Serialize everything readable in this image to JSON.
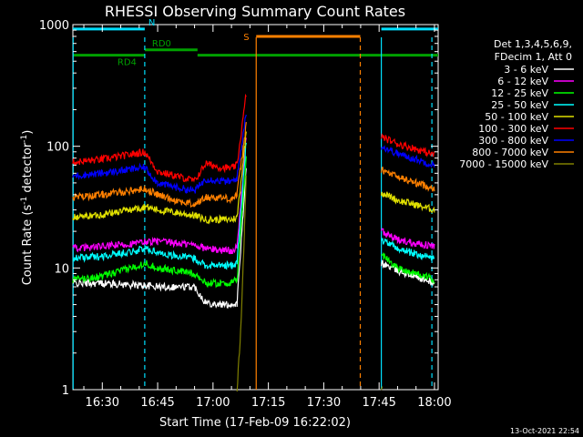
{
  "chart_data": {
    "type": "line",
    "title": "RHESSI Observing Summary Count Rates",
    "xlabel": "Start Time (17-Feb-09 16:22:02)",
    "ylabel_main": "Count Rate (s",
    "ylabel_sup": "-1",
    "ylabel_mid": " detector",
    "ylabel_end": ")",
    "y_scale": "log",
    "ylim": [
      1,
      1000
    ],
    "xlim_minutes": [
      22.03,
      121.0
    ],
    "x_ticks": [
      {
        "label": "16:30",
        "minute": 30
      },
      {
        "label": "16:45",
        "minute": 45
      },
      {
        "label": "17:00",
        "minute": 60
      },
      {
        "label": "17:15",
        "minute": 75
      },
      {
        "label": "17:30",
        "minute": 90
      },
      {
        "label": "17:45",
        "minute": 105
      },
      {
        "label": "18:00",
        "minute": 120
      }
    ],
    "y_ticks": [
      {
        "label": "1",
        "value": 1
      },
      {
        "label": "10",
        "value": 10
      },
      {
        "label": "100",
        "value": 100
      },
      {
        "label": "1000",
        "value": 1000
      }
    ],
    "legend_header": [
      "Det 1,3,4,5,6,9,",
      "FDecim 1, Att 0"
    ],
    "legend_placement": "right",
    "timestamp": "13-Oct-2021 22:54",
    "intervals": [
      {
        "label": "N",
        "level": 920,
        "color": "#00e0ff",
        "segments": [
          [
            22.03,
            41.5
          ],
          [
            105.6,
            121.0
          ]
        ]
      },
      {
        "label": "RD0",
        "level": 620,
        "color": "#00a000",
        "segments": [
          [
            41.5,
            55.8
          ]
        ]
      },
      {
        "label": "RD4",
        "level": 560,
        "color": "#00a000",
        "segments": [
          [
            22.03,
            41.5
          ],
          [
            55.8,
            121.0
          ]
        ]
      },
      {
        "label": "S",
        "level": 800,
        "color": "#ff8000",
        "segments": [
          [
            71.7,
            99.9
          ]
        ]
      }
    ],
    "vertical_markers": [
      {
        "minute": 22.1,
        "color": "#00e0ff",
        "style": "solid"
      },
      {
        "minute": 41.5,
        "color": "#00e0ff",
        "style": "dashed"
      },
      {
        "minute": 71.7,
        "color": "#ff8000",
        "style": "solid"
      },
      {
        "minute": 99.9,
        "color": "#ff8000",
        "style": "dashed"
      },
      {
        "minute": 105.6,
        "color": "#00e0ff",
        "style": "solid"
      },
      {
        "minute": 119.3,
        "color": "#00e0ff",
        "style": "dashed"
      }
    ],
    "series": [
      {
        "name": "3 - 6 keV",
        "color": "#ffffff",
        "x": [
          22,
          30,
          40,
          41.5,
          45,
          50,
          55,
          58,
          62,
          65,
          66.5,
          69,
          105.6,
          110,
          115,
          120
        ],
        "y": [
          7.5,
          7.5,
          7.2,
          7.2,
          7.0,
          7.0,
          7.0,
          5.2,
          5.0,
          5.0,
          5.1,
          65,
          11,
          9.5,
          8.5,
          7.5
        ]
      },
      {
        "name": "6 - 12 keV",
        "color": "#ff00ff",
        "x": [
          22,
          30,
          40,
          41.5,
          45,
          50,
          55,
          58,
          62,
          65,
          66.5,
          69,
          105.6,
          110,
          115,
          120
        ],
        "y": [
          14.5,
          15,
          16,
          16.5,
          16.5,
          16,
          15.5,
          14.5,
          14,
          14,
          14.5,
          120,
          20,
          17,
          16,
          15
        ]
      },
      {
        "name": "12 - 25 keV",
        "color": "#00ff00",
        "x": [
          22,
          30,
          40,
          41.5,
          45,
          50,
          55,
          58,
          62,
          65,
          66.5,
          69,
          105.6,
          110,
          115,
          120
        ],
        "y": [
          8,
          8.5,
          10.5,
          11,
          10,
          9.5,
          9,
          7.5,
          7.5,
          7.5,
          8,
          80,
          13,
          10,
          9,
          8
        ]
      },
      {
        "name": "25 - 50 keV",
        "color": "#00ffff",
        "x": [
          22,
          30,
          40,
          41.5,
          45,
          50,
          55,
          58,
          62,
          65,
          66.5,
          69,
          105.6,
          110,
          115,
          120
        ],
        "y": [
          12,
          12.5,
          14,
          14.5,
          13.5,
          12.5,
          12,
          10.5,
          10.5,
          10.5,
          11,
          110,
          17,
          14.5,
          13,
          12
        ]
      },
      {
        "name": "50 - 100 keV",
        "color": "#e0e000",
        "x": [
          22,
          30,
          40,
          41.5,
          45,
          50,
          55,
          58,
          62,
          65,
          66.5,
          69,
          105.6,
          110,
          115,
          120
        ],
        "y": [
          26,
          27.5,
          31,
          32,
          30,
          28.5,
          27,
          25,
          25,
          25,
          26,
          130,
          42,
          36,
          33,
          30
        ]
      },
      {
        "name": "100 - 300 keV",
        "color": "#ff0000",
        "x": [
          22,
          30,
          40,
          41.5,
          45,
          50,
          55,
          58,
          62,
          65,
          66.5,
          69,
          105.6,
          110,
          115,
          120
        ],
        "y": [
          74,
          78,
          88,
          90,
          62,
          57,
          52,
          72,
          67,
          66,
          70,
          270,
          120,
          105,
          95,
          85
        ]
      },
      {
        "name": "300 - 800 keV",
        "color": "#0000ff",
        "x": [
          22,
          30,
          40,
          41.5,
          45,
          50,
          55,
          58,
          62,
          65,
          66.5,
          69,
          105.6,
          110,
          115,
          120
        ],
        "y": [
          57,
          60,
          66,
          67,
          50,
          46,
          43,
          54,
          52,
          51,
          55,
          190,
          100,
          87,
          78,
          70
        ]
      },
      {
        "name": "800 - 7000 keV",
        "color": "#ff8000",
        "x": [
          22,
          30,
          40,
          41.5,
          45,
          50,
          55,
          58,
          62,
          65,
          66.5,
          69,
          105.6,
          110,
          115,
          120
        ],
        "y": [
          38,
          40,
          44,
          45,
          40,
          36,
          33,
          38,
          38,
          37,
          40,
          150,
          64,
          56,
          50,
          45
        ]
      },
      {
        "name": "7000 - 15000 keV",
        "color": "#808000",
        "x": [
          66.5,
          67.5,
          68.5,
          69,
          105.6,
          106
        ],
        "y": [
          1.0,
          3.0,
          20,
          60,
          1.0,
          1.0
        ]
      }
    ]
  }
}
